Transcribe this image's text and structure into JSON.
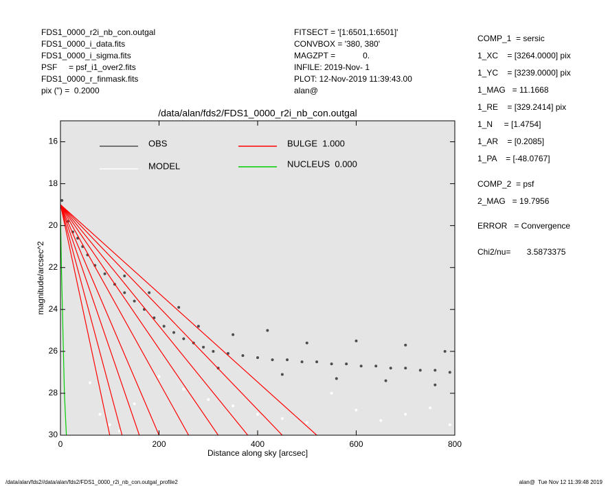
{
  "header": {
    "left": [
      "FDS1_0000_r2i_nb_con.outgal",
      "FDS1_0000_i_data.fits",
      "FDS1_0000_i_sigma.fits",
      "PSF     = psf_i1_over2.fits",
      "FDS1_0000_r_finmask.fits",
      "pix (\") =  0.2000"
    ],
    "middle": [
      "FITSECT = '[1:6501,1:6501]'",
      "CONVBOX = '380, 380'",
      "MAGZPT =            0.",
      "INFILE: 2019-Nov- 1",
      "PLOT: 12-Nov-2019 11:39:43.00",
      "alan@"
    ],
    "right": [
      "COMP_1  = sersic",
      "1_XC    = [3264.0000] pix",
      "1_YC    = [3239.0000] pix",
      "1_MAG   = 11.1668",
      "1_RE    = [329.2414] pix",
      "1_N     = [1.4754]",
      "1_AR    = [0.2085]",
      "1_PA    = [-48.0767]",
      "COMP_2  = psf",
      "2_MAG   = 19.7956",
      "ERROR   = Convergence",
      "Chi2/nu=       3.5873375"
    ]
  },
  "footer": {
    "left": "/data/alan/fds2//data/alan/fds2/FDS1_0000_r2i_nb_con.outgal_profile2",
    "right": "alan@  Tue Nov 12 11:39:48 2019"
  },
  "chart_data": {
    "type": "scatter",
    "title": "/data/alan/fds2/FDS1_0000_r2i_nb_con.outgal",
    "x_label": "Distance along sky [arcsec]",
    "y_label": "magnitude/arcsec^2",
    "xlim": [
      0,
      800
    ],
    "ylim": [
      30,
      15
    ],
    "y_inverted": true,
    "xticks": [
      0,
      200,
      400,
      600,
      800
    ],
    "yticks": [
      16,
      18,
      20,
      22,
      24,
      26,
      28,
      30
    ],
    "background": "#e5e5e5",
    "series": [
      {
        "name": "OBS",
        "color": "#4d4d4d",
        "label_color": "#8c8c8c",
        "x": [
          3,
          8,
          15,
          25,
          35,
          45,
          55,
          70,
          90,
          110,
          130,
          150,
          170,
          190,
          210,
          230,
          250,
          270,
          290,
          310,
          340,
          370,
          400,
          430,
          460,
          490,
          520,
          550,
          580,
          610,
          640,
          670,
          700,
          730,
          760,
          790,
          240,
          280,
          350,
          420,
          500,
          600,
          700,
          780,
          320,
          450,
          560,
          660,
          760,
          180,
          130
        ],
        "values": [
          18.8,
          19.3,
          19.8,
          20.3,
          20.6,
          21.0,
          21.4,
          21.9,
          22.3,
          22.8,
          23.2,
          23.6,
          24.0,
          24.4,
          24.8,
          25.1,
          25.4,
          25.6,
          25.8,
          26.0,
          26.1,
          26.2,
          26.3,
          26.4,
          26.4,
          26.5,
          26.5,
          26.6,
          26.6,
          26.7,
          26.7,
          26.8,
          26.8,
          26.9,
          26.9,
          27.0,
          23.9,
          24.8,
          25.2,
          25.0,
          25.6,
          25.5,
          25.7,
          26.0,
          26.8,
          27.1,
          27.3,
          27.4,
          27.6,
          23.2,
          22.4
        ]
      },
      {
        "name": "MODEL",
        "color": "#ffffff",
        "label_color": "#ffffff",
        "x": [
          60,
          80,
          100,
          120,
          150,
          200,
          250,
          300,
          350,
          400,
          450,
          500,
          550,
          600,
          650,
          700,
          750,
          790
        ],
        "values": [
          27.5,
          29.0,
          29.5,
          29.8,
          28.5,
          27.2,
          27.8,
          28.3,
          28.6,
          29.0,
          29.2,
          29.4,
          28.0,
          28.8,
          29.3,
          29.0,
          28.7,
          29.5
        ]
      },
      {
        "name": "BULGE  1.000",
        "color": "#ff0000",
        "label_color": "#ff0000",
        "curves": [
          {
            "x": [
              0,
              520
            ],
            "values": [
              19,
              30
            ]
          },
          {
            "x": [
              0,
              450
            ],
            "values": [
              19,
              30
            ]
          },
          {
            "x": [
              0,
              380
            ],
            "values": [
              19,
              30
            ]
          },
          {
            "x": [
              0,
              320
            ],
            "values": [
              19,
              30
            ]
          },
          {
            "x": [
              0,
              260
            ],
            "values": [
              19,
              30
            ]
          },
          {
            "x": [
              0,
              200
            ],
            "values": [
              19,
              30
            ]
          },
          {
            "x": [
              0,
              160
            ],
            "values": [
              19,
              30
            ]
          },
          {
            "x": [
              0,
              125
            ],
            "values": [
              19,
              30
            ]
          },
          {
            "x": [
              0,
              100
            ],
            "values": [
              19,
              30
            ]
          }
        ]
      },
      {
        "name": "NUCLEUS  0.000",
        "color": "#00cc00",
        "label_color": "#00cc00",
        "curves": [
          {
            "x": [
              0,
              2,
              5,
              8,
              12
            ],
            "values": [
              19.5,
              22,
              25,
              28,
              30
            ]
          }
        ]
      }
    ]
  }
}
